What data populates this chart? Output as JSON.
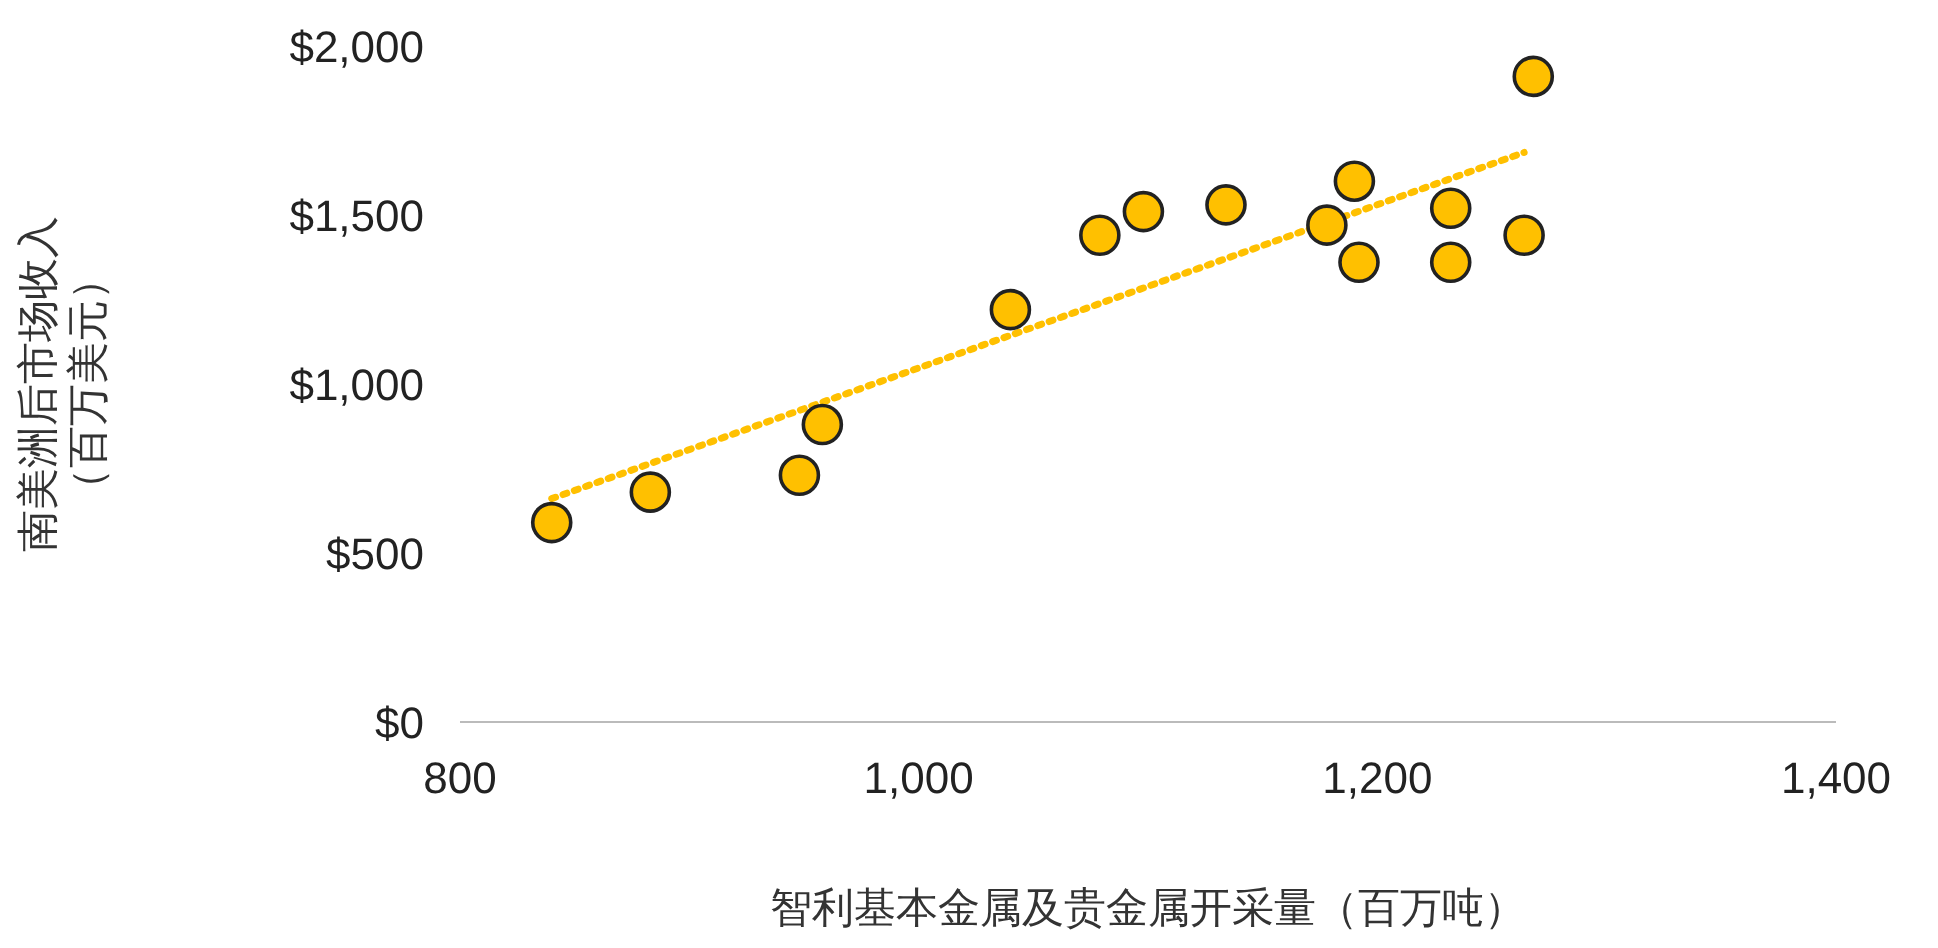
{
  "chart_data": {
    "type": "scatter",
    "xlabel": "智利基本金属及贵金属开采量（百万吨）",
    "ylabel": "南美洲后市场收入（百万美元）",
    "xlim": [
      800,
      1400
    ],
    "xticks": [
      800,
      {
        "value": 1000,
        "label": "1,000"
      },
      {
        "value": 1200,
        "label": "1,200"
      },
      {
        "value": 1400,
        "label": "1,400"
      }
    ],
    "ylim": [
      0,
      2000
    ],
    "yticks": [
      {
        "value": 0,
        "label": "$0"
      },
      {
        "value": 500,
        "label": "$500"
      },
      {
        "value": 1000,
        "label": "$1,000"
      },
      {
        "value": 1500,
        "label": "$1,500"
      },
      {
        "value": 2000,
        "label": "$2,000"
      }
    ],
    "marker": "circle",
    "series": [
      {
        "color": "#ffc000",
        "x": [
          840,
          883,
          948,
          958,
          1040,
          1079,
          1098,
          1134,
          1178,
          1190,
          1192,
          1232,
          1232,
          1264,
          1268
        ],
        "values": [
          590,
          680,
          730,
          880,
          1220,
          1440,
          1510,
          1530,
          1470,
          1600,
          1360,
          1520,
          1360,
          1440,
          1910
        ]
      },
      {
        "type": "line",
        "color": "#ffc000",
        "line_style": "dotted",
        "marker": "none",
        "x": [
          840,
          1264
        ],
        "values": [
          661,
          1685
        ]
      }
    ]
  }
}
